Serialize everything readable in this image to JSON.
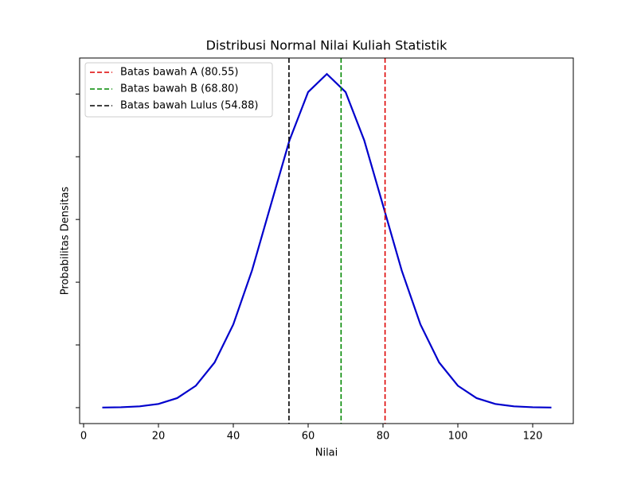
{
  "chart_data": {
    "type": "line",
    "title": "Distribusi Normal Nilai Kuliah Statistik",
    "x_label": "Nilai",
    "y_label": "Probabilitas Densitas",
    "x": [
      5,
      10,
      15,
      20,
      25,
      30,
      35,
      40,
      45,
      50,
      55,
      60,
      65,
      70,
      75,
      80,
      85,
      90,
      95,
      100,
      105,
      110,
      115,
      120,
      125
    ],
    "series": [
      {
        "color": "#0000cc",
        "values": [
          8.9e-06,
          3.2e-05,
          0.000103,
          0.000295,
          0.00076,
          0.001748,
          0.0036,
          0.006634,
          0.010934,
          0.01613,
          0.021296,
          0.02516,
          0.026596,
          0.02516,
          0.021296,
          0.01613,
          0.010934,
          0.006634,
          0.0036,
          0.001748,
          0.00076,
          0.000295,
          0.000103,
          3.2e-05,
          8.9e-06
        ]
      }
    ],
    "vlines": [
      {
        "name": "Batas bawah A (80.55)",
        "x": 80.55,
        "color": "#dd0000"
      },
      {
        "name": "Batas bawah B (68.80)",
        "x": 68.8,
        "color": "#008800"
      },
      {
        "name": "Batas bawah Lulus (54.88)",
        "x": 54.88,
        "color": "#000000"
      }
    ],
    "xlim": [
      -1.06,
      130.85
    ],
    "xticks": [
      0,
      20,
      40,
      60,
      80,
      100,
      120
    ],
    "ylim": [
      -0.00127,
      0.02787
    ],
    "yticks": [
      0,
      0.005,
      0.01,
      0.015,
      0.02,
      0.025
    ],
    "legend": "upper left"
  }
}
